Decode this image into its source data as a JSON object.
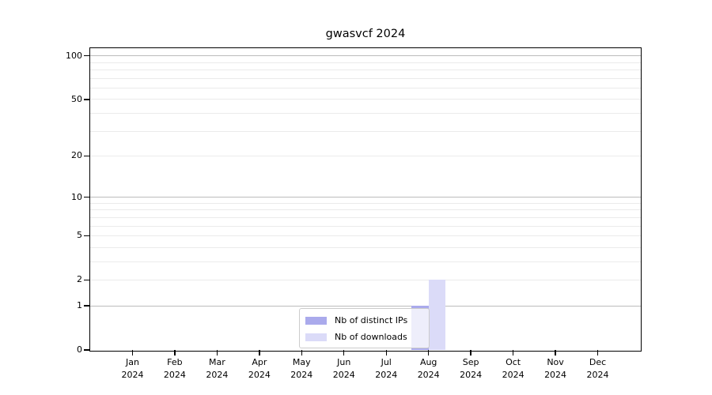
{
  "chart_data": {
    "type": "bar",
    "title": "gwasvcf 2024",
    "categories": [
      "Jan",
      "Feb",
      "Mar",
      "Apr",
      "May",
      "Jun",
      "Jul",
      "Aug",
      "Sep",
      "Oct",
      "Nov",
      "Dec"
    ],
    "x_tick_second_line": "2024",
    "series": [
      {
        "name": "Nb of distinct IPs",
        "color": "#aaaaec",
        "values": [
          0,
          0,
          0,
          0,
          0,
          0,
          0,
          1,
          0,
          0,
          0,
          0
        ]
      },
      {
        "name": "Nb of downloads",
        "color": "#dbdbf8",
        "values": [
          0,
          0,
          0,
          0,
          0,
          0,
          0,
          2,
          0,
          0,
          0,
          0
        ]
      }
    ],
    "yscale": "log1p",
    "ylim": [
      0,
      113
    ],
    "yticks": [
      0,
      1,
      2,
      5,
      10,
      20,
      50,
      100
    ],
    "grid_major_values": [
      1,
      10,
      100
    ],
    "grid_minor_values": [
      2,
      3,
      4,
      5,
      6,
      7,
      8,
      9,
      20,
      30,
      40,
      50,
      60,
      70,
      80,
      90
    ],
    "legend": {
      "position": "lower center",
      "entries": [
        "Nb of distinct IPs",
        "Nb of downloads"
      ]
    },
    "colors": {
      "bar_distinct_ips": "#aaaaec",
      "bar_downloads": "#dbdbf8",
      "grid_major": "#bcbcbc",
      "grid_minor": "#ebebeb",
      "axis": "#000000",
      "legend_border": "#cccccc"
    }
  }
}
